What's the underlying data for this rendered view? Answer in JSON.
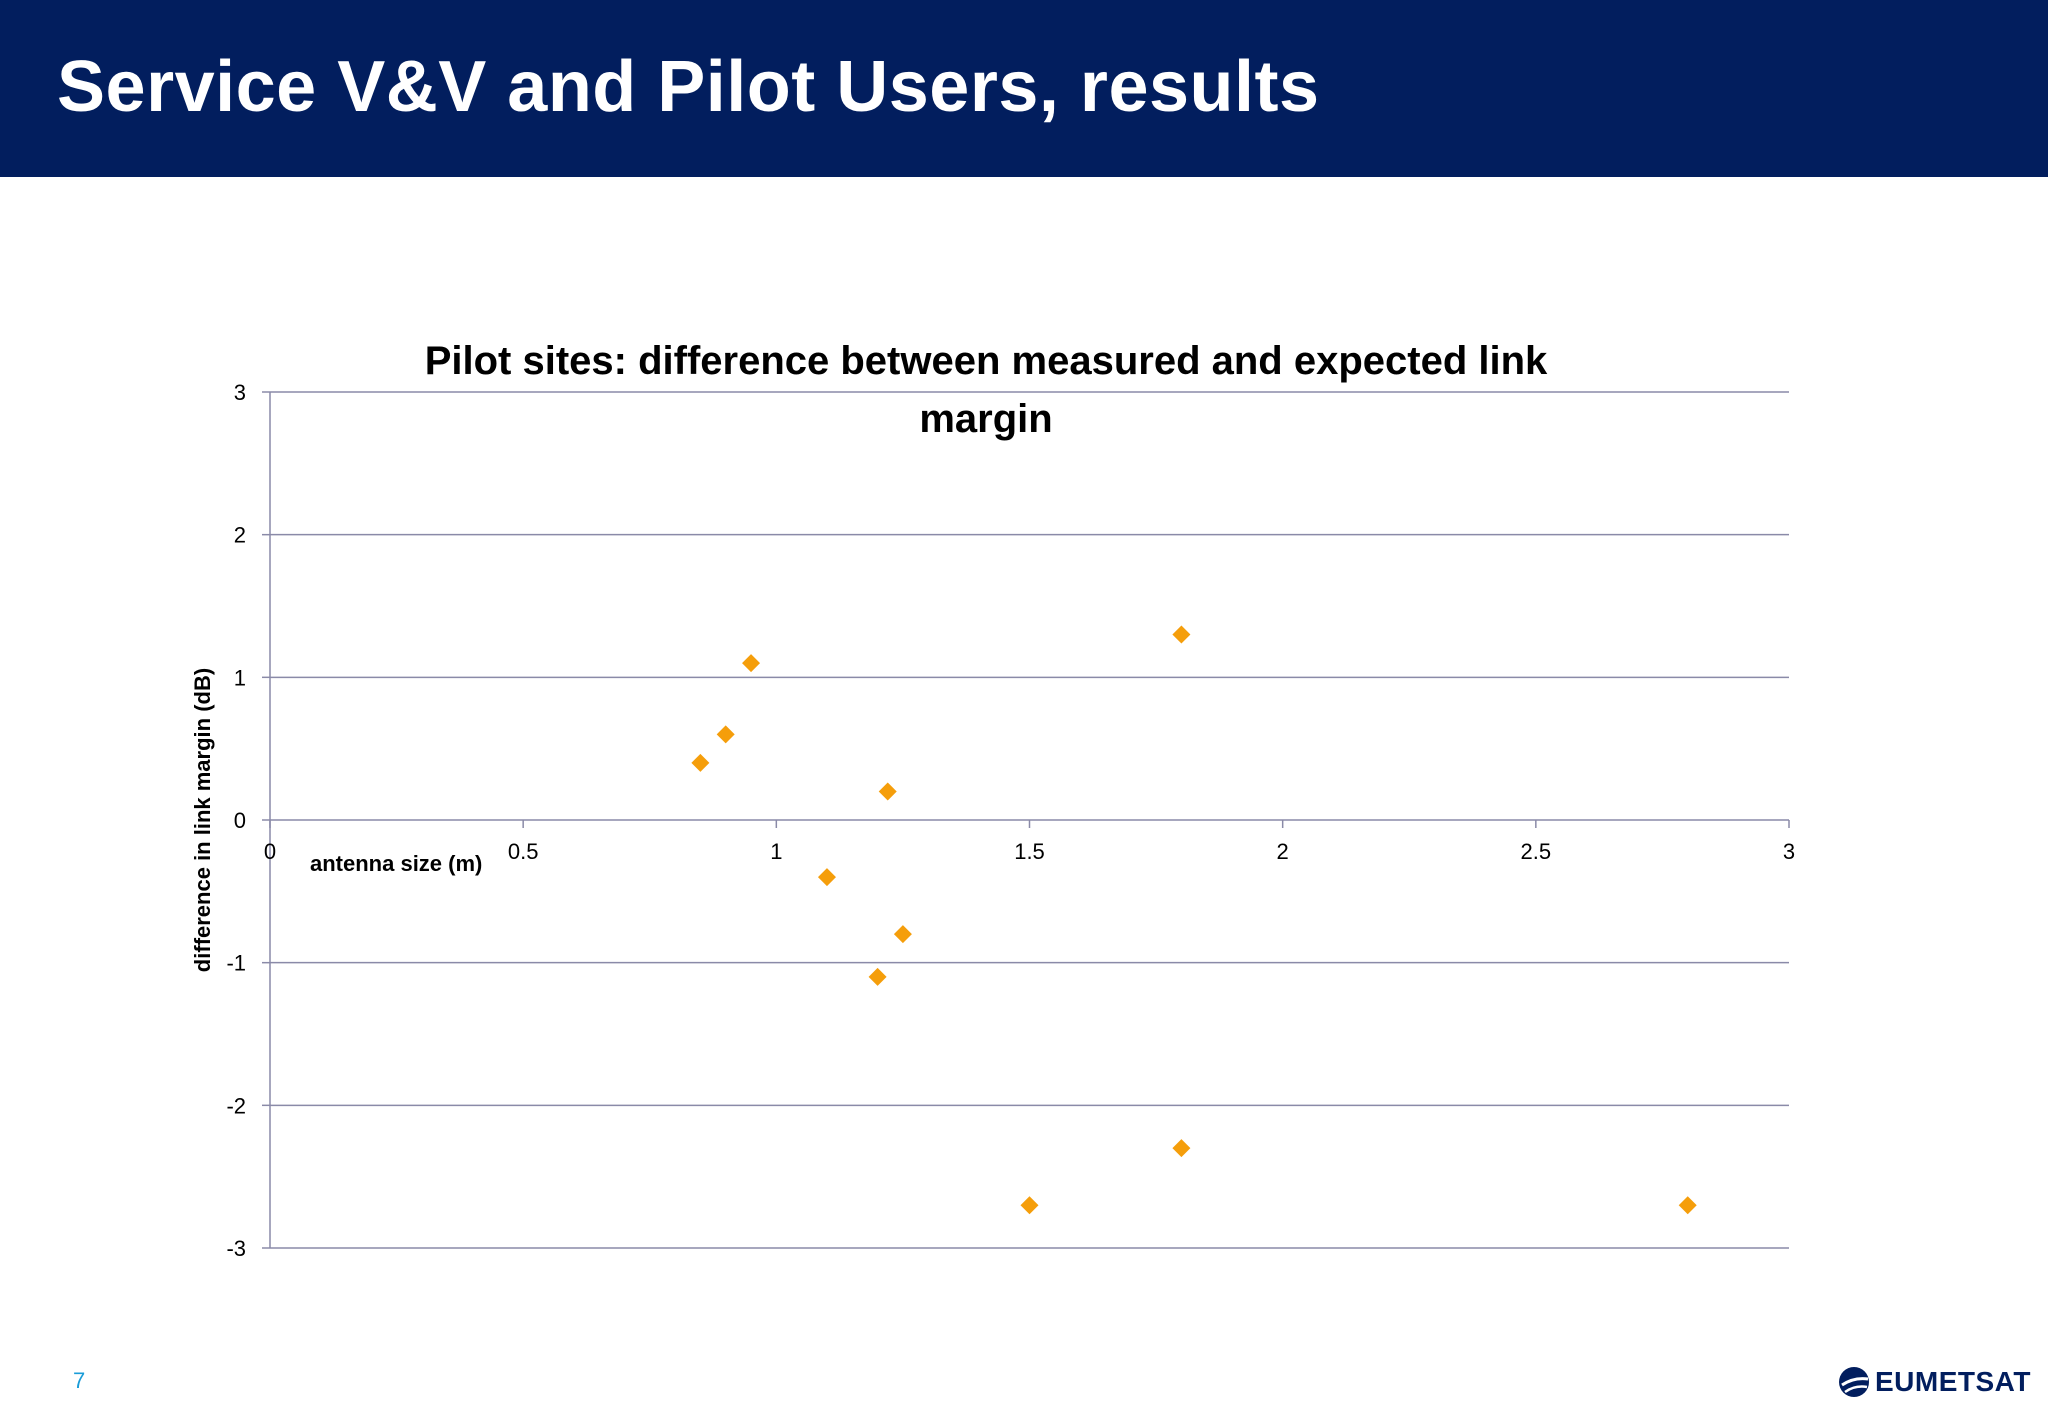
{
  "slide": {
    "title": "Service V&V and Pilot Users, results",
    "page_number": "7",
    "logo_text": "EUMETSAT"
  },
  "colors": {
    "header_bg": "#021e5e",
    "marker": "#f59e0b",
    "gridline": "#8a8aa8",
    "page_number": "#1a9cd8"
  },
  "chart_data": {
    "type": "scatter",
    "title": "Pilot sites: difference between measured and expected link margin",
    "xlabel": "antenna size (m)",
    "ylabel": "difference in link margin (dB)",
    "xlim": [
      0,
      3
    ],
    "ylim": [
      -3,
      3
    ],
    "x_ticks": [
      "0",
      "0.5",
      "1",
      "1.5",
      "2",
      "2.5",
      "3"
    ],
    "y_ticks": [
      "3",
      "2",
      "1",
      "0",
      "-1",
      "-2",
      "-3"
    ],
    "grid": true,
    "legend": "none",
    "marker": "diamond",
    "points": [
      {
        "x": 0.85,
        "y": 0.4
      },
      {
        "x": 0.9,
        "y": 0.6
      },
      {
        "x": 0.95,
        "y": 1.1
      },
      {
        "x": 1.1,
        "y": -0.4
      },
      {
        "x": 1.2,
        "y": -1.1
      },
      {
        "x": 1.22,
        "y": 0.2
      },
      {
        "x": 1.25,
        "y": -0.8
      },
      {
        "x": 1.5,
        "y": -2.7
      },
      {
        "x": 1.8,
        "y": 1.3
      },
      {
        "x": 1.8,
        "y": -2.3
      },
      {
        "x": 2.8,
        "y": -2.7
      }
    ]
  }
}
